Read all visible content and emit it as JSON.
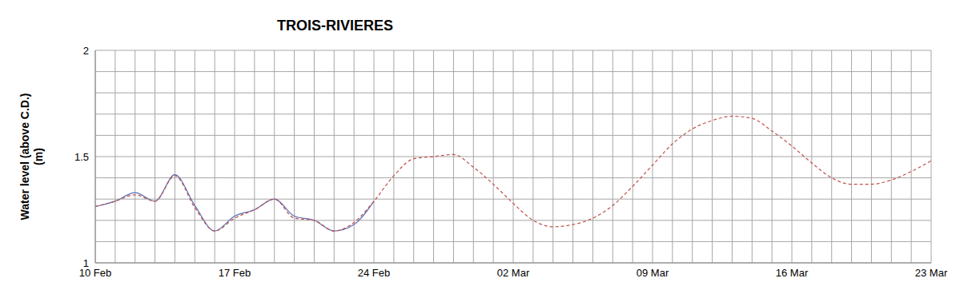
{
  "chart_data": {
    "type": "line",
    "title": "TROIS-RIVIERES",
    "y_label": "Water level (above C.D.) (m)",
    "categories": [
      "10 Feb",
      null,
      null,
      null,
      null,
      null,
      null,
      "17 Feb",
      null,
      null,
      null,
      null,
      null,
      null,
      "24 Feb",
      null,
      null,
      null,
      null,
      null,
      null,
      "02 Mar",
      null,
      null,
      null,
      null,
      null,
      null,
      "09 Mar",
      null,
      null,
      null,
      null,
      null,
      null,
      "16 Mar",
      null,
      null,
      null,
      null,
      null,
      null,
      "23 Mar"
    ],
    "series": [
      {
        "color": "#5b6fb5",
        "line_style": "solid",
        "values": [
          1.265,
          1.29,
          1.33,
          1.29,
          1.415,
          1.27,
          1.15,
          1.22,
          1.25,
          1.3,
          1.22,
          1.2,
          1.15,
          1.18,
          1.29,
          null,
          null,
          null,
          null,
          null,
          null,
          null,
          null,
          null,
          null,
          null,
          null,
          null,
          null,
          null,
          null,
          null,
          null,
          null,
          null,
          null,
          null,
          null,
          null,
          null,
          null,
          null,
          null
        ]
      },
      {
        "color": "#c0504d",
        "line_style": "dashed",
        "values": [
          1.265,
          1.29,
          1.32,
          1.29,
          1.41,
          1.26,
          1.15,
          1.21,
          1.25,
          1.3,
          1.21,
          1.2,
          1.15,
          1.19,
          1.29,
          1.41,
          1.49,
          1.5,
          1.51,
          1.45,
          1.37,
          1.28,
          1.2,
          1.17,
          1.18,
          1.21,
          1.27,
          1.36,
          1.46,
          1.56,
          1.63,
          1.67,
          1.69,
          1.68,
          1.62,
          1.55,
          1.47,
          1.4,
          1.37,
          1.37,
          1.39,
          1.43,
          1.48
        ]
      }
    ],
    "ylim": [
      1,
      2
    ],
    "yticks": [
      1,
      1.5,
      2
    ],
    "grid": true
  }
}
